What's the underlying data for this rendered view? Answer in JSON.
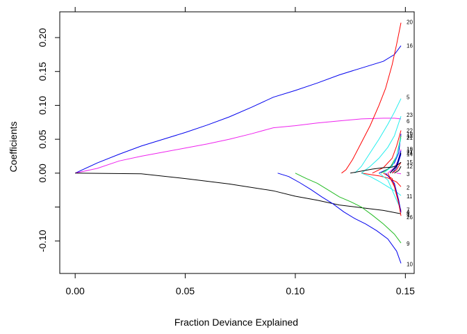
{
  "chart_data": {
    "type": "line",
    "title": "",
    "xlabel": "Fraction Deviance Explained",
    "ylabel": "Coefficients",
    "xlim": [
      -0.007,
      0.154
    ],
    "ylim": [
      -0.148,
      0.238
    ],
    "xticks": [
      0.0,
      0.05,
      0.1,
      0.15
    ],
    "xtick_labels": [
      "0.00",
      "0.05",
      "0.10",
      "0.15"
    ],
    "top_ticks": [
      0.0,
      0.05,
      0.1,
      0.15
    ],
    "yticks": [
      -0.1,
      -0.05,
      0.0,
      0.05,
      0.1,
      0.15,
      0.2
    ],
    "ytick_labels": [
      "-0.10",
      "",
      "0.00",
      "0.05",
      "0.10",
      "0.15",
      "0.20"
    ],
    "grid": false,
    "legend": "none",
    "colors": {
      "black": "#000000",
      "red": "#ff0000",
      "green": "#22bb22",
      "blue": "#0000ee",
      "cyan": "#22eeee",
      "magenta": "#ee22ee"
    },
    "series": [
      {
        "label": "16",
        "color": "#0000ee",
        "x": [
          0.0,
          0.01,
          0.02,
          0.03,
          0.04,
          0.05,
          0.06,
          0.07,
          0.08,
          0.09,
          0.1,
          0.11,
          0.12,
          0.13,
          0.14,
          0.145,
          0.148
        ],
        "y": [
          0.0,
          0.015,
          0.028,
          0.04,
          0.05,
          0.06,
          0.071,
          0.083,
          0.097,
          0.112,
          0.122,
          0.133,
          0.145,
          0.155,
          0.165,
          0.175,
          0.188
        ]
      },
      {
        "label": "6",
        "color": "#ee22ee",
        "x": [
          0.0,
          0.01,
          0.02,
          0.03,
          0.04,
          0.05,
          0.06,
          0.07,
          0.08,
          0.09,
          0.1,
          0.11,
          0.12,
          0.13,
          0.14,
          0.145,
          0.148
        ],
        "y": [
          0.0,
          0.007,
          0.018,
          0.025,
          0.031,
          0.037,
          0.043,
          0.05,
          0.058,
          0.067,
          0.07,
          0.074,
          0.077,
          0.08,
          0.081,
          0.081,
          0.08
        ]
      },
      {
        "label": "20",
        "color": "#ff0000",
        "x": [
          0.121,
          0.123,
          0.126,
          0.13,
          0.134,
          0.138,
          0.141,
          0.144,
          0.146,
          0.148
        ],
        "y": [
          0.0,
          0.005,
          0.02,
          0.045,
          0.07,
          0.1,
          0.125,
          0.16,
          0.19,
          0.222
        ]
      },
      {
        "label": "5",
        "color": "#22eeee",
        "x": [
          0.127,
          0.13,
          0.134,
          0.138,
          0.142,
          0.145,
          0.148
        ],
        "y": [
          0.0,
          0.01,
          0.03,
          0.05,
          0.072,
          0.09,
          0.11
        ]
      },
      {
        "label": "23",
        "color": "#22eeee",
        "x": [
          0.13,
          0.134,
          0.138,
          0.142,
          0.145,
          0.148
        ],
        "y": [
          0.0,
          0.01,
          0.022,
          0.038,
          0.055,
          0.084
        ]
      },
      {
        "label": "22",
        "color": "#ff0000",
        "x": [
          0.135,
          0.14,
          0.144,
          0.146,
          0.148
        ],
        "y": [
          0.0,
          0.008,
          0.022,
          0.04,
          0.063
        ]
      },
      {
        "label": "19",
        "color": "#0000ee",
        "x": [
          0.138,
          0.142,
          0.145,
          0.147,
          0.148
        ],
        "y": [
          0.0,
          0.006,
          0.015,
          0.03,
          0.058
        ]
      },
      {
        "label": "13",
        "color": "#22bb22",
        "x": [
          0.139,
          0.143,
          0.146,
          0.148
        ],
        "y": [
          0.0,
          0.008,
          0.025,
          0.055
        ]
      },
      {
        "label": "21",
        "color": "#22eeee",
        "x": [
          0.14,
          0.144,
          0.146,
          0.148
        ],
        "y": [
          0.0,
          0.01,
          0.025,
          0.052
        ]
      },
      {
        "label": "18",
        "color": "#ee22ee",
        "x": [
          0.142,
          0.145,
          0.147,
          0.148
        ],
        "y": [
          0.0,
          0.008,
          0.02,
          0.035
        ]
      },
      {
        "label": "17",
        "color": "#0000ee",
        "x": [
          0.143,
          0.146,
          0.148
        ],
        "y": [
          0.0,
          0.012,
          0.033
        ]
      },
      {
        "label": "24",
        "color": "#000000",
        "x": [
          0.143,
          0.146,
          0.148
        ],
        "y": [
          0.0,
          0.01,
          0.03
        ]
      },
      {
        "label": "14",
        "color": "#0000ee",
        "x": [
          0.144,
          0.146,
          0.148
        ],
        "y": [
          0.0,
          0.008,
          0.028
        ]
      },
      {
        "label": "25",
        "color": "#ff0000",
        "x": [
          0.144,
          0.146,
          0.148
        ],
        "y": [
          0.0,
          0.005,
          0.016
        ]
      },
      {
        "label": "15",
        "color": "#000000",
        "x": [
          0.125,
          0.13,
          0.135,
          0.14,
          0.144,
          0.146,
          0.148
        ],
        "y": [
          0.0,
          0.003,
          0.006,
          0.008,
          0.009,
          0.011,
          0.016
        ]
      },
      {
        "label": "12",
        "color": "#000000",
        "x": [
          0.145,
          0.147,
          0.148
        ],
        "y": [
          0.0,
          0.004,
          0.01
        ]
      },
      {
        "label": "3",
        "color": "#ee22ee",
        "x": [
          0.146,
          0.148
        ],
        "y": [
          0.0,
          -0.001
        ]
      },
      {
        "label": "2",
        "color": "#ff0000",
        "x": [
          0.13,
          0.134,
          0.138,
          0.142,
          0.146,
          0.148
        ],
        "y": [
          0.0,
          -0.002,
          -0.004,
          -0.007,
          -0.013,
          -0.02
        ]
      },
      {
        "label": "11",
        "color": "#22eeee",
        "x": [
          0.13,
          0.134,
          0.138,
          0.142,
          0.146,
          0.148
        ],
        "y": [
          0.0,
          -0.005,
          -0.012,
          -0.02,
          -0.028,
          -0.033
        ]
      },
      {
        "label": "7",
        "color": "#22eeee",
        "x": [
          0.138,
          0.142,
          0.146,
          0.148
        ],
        "y": [
          0.0,
          -0.01,
          -0.04,
          -0.054
        ]
      },
      {
        "label": "4",
        "color": "#ff0000",
        "x": [
          0.14,
          0.144,
          0.146,
          0.148
        ],
        "y": [
          0.0,
          -0.008,
          -0.03,
          -0.056
        ]
      },
      {
        "label": "8",
        "color": "#0000ee",
        "x": [
          0.141,
          0.145,
          0.147,
          0.148
        ],
        "y": [
          0.0,
          -0.015,
          -0.04,
          -0.058
        ]
      },
      {
        "label": "1",
        "color": "#000000",
        "x": [
          0.0,
          0.03,
          0.05,
          0.07,
          0.09,
          0.1,
          0.11,
          0.12,
          0.13,
          0.14,
          0.148
        ],
        "y": [
          0.0,
          -0.001,
          -0.008,
          -0.016,
          -0.026,
          -0.034,
          -0.04,
          -0.047,
          -0.051,
          -0.055,
          -0.06
        ]
      },
      {
        "label": "26",
        "color": "#ff0000",
        "x": [
          0.142,
          0.145,
          0.147,
          0.148
        ],
        "y": [
          0.0,
          -0.02,
          -0.045,
          -0.063
        ]
      },
      {
        "label": "9",
        "color": "#22bb22",
        "x": [
          0.1,
          0.105,
          0.11,
          0.115,
          0.12,
          0.125,
          0.13,
          0.135,
          0.14,
          0.145,
          0.148
        ],
        "y": [
          0.0,
          -0.008,
          -0.015,
          -0.025,
          -0.035,
          -0.042,
          -0.05,
          -0.062,
          -0.075,
          -0.09,
          -0.103
        ]
      },
      {
        "label": "10",
        "color": "#0000ee",
        "x": [
          0.092,
          0.097,
          0.102,
          0.107,
          0.112,
          0.117,
          0.122,
          0.127,
          0.132,
          0.137,
          0.142,
          0.146,
          0.148
        ],
        "y": [
          0.0,
          -0.005,
          -0.014,
          -0.024,
          -0.035,
          -0.045,
          -0.057,
          -0.067,
          -0.075,
          -0.085,
          -0.097,
          -0.115,
          -0.133
        ]
      }
    ],
    "label_positions": {
      "20": 0.223,
      "16": 0.188,
      "5": 0.112,
      "23": 0.086,
      "6": 0.077,
      "22": 0.063,
      "19": 0.058,
      "13": 0.055,
      "21": 0.052,
      "18": 0.036,
      "17": 0.033,
      "24": 0.03,
      "14": 0.028,
      "15": 0.016,
      "12": 0.01,
      "3": -0.001,
      "2": -0.021,
      "11": -0.034,
      "7": -0.054,
      "4": -0.057,
      "8": -0.059,
      "1": -0.061,
      "26": -0.065,
      "9": -0.104,
      "10": -0.134
    }
  }
}
